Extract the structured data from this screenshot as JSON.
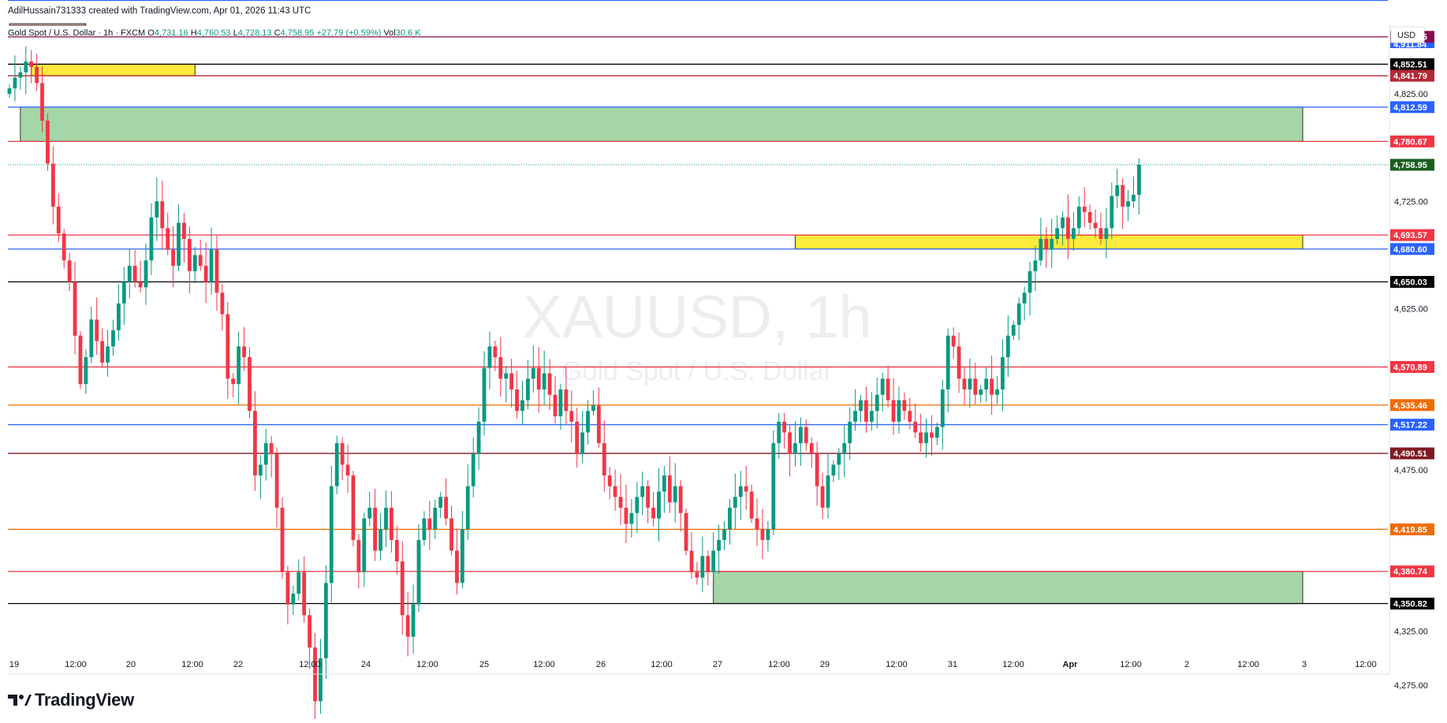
{
  "header": {
    "author": "AdilHussain731333",
    "created_text": "created with TradingView.com, Apr 01, 2026 11:43 UTC"
  },
  "symbol_line": {
    "name": "Gold Spot / U.S. Dollar · 1h · FXCM",
    "o_label": "O",
    "o_value": "4,731.16",
    "h_label": "H",
    "h_value": "4,760.53",
    "l_label": "L",
    "l_value": "4,728.13",
    "c_label": "C",
    "c_value": "4,758.95",
    "change": "+27.79 (+0.59%)",
    "vol_label": "Vol",
    "vol_value": "30.6 K"
  },
  "currency_badge": "USD",
  "watermark": {
    "symbol": "XAUUSD, 1h",
    "description": "Gold Spot / U.S. Dollar"
  },
  "logo": {
    "text": "TradingView"
  },
  "colors": {
    "up": "#089981",
    "down": "#f23645",
    "grid": "#f0f3fa",
    "zone_green": "#a5d6a7",
    "zone_yellow": "#ffeb3b"
  },
  "chart_data": {
    "type": "candlestick",
    "ylim": [
      4258,
      4938
    ],
    "y_ticks": [
      "4,825.00",
      "4,725.00",
      "4,625.00",
      "4,475.00",
      "4,325.00",
      "4,275.00"
    ],
    "y_tick_values": [
      4825,
      4725,
      4625,
      4475,
      4325,
      4275
    ],
    "x_ticks": [
      "19",
      "12:00",
      "20",
      "12:00",
      "22",
      "12:00",
      "24",
      "12:00",
      "25",
      "12:00",
      "26",
      "12:00",
      "27",
      "12:00",
      "29",
      "12:00",
      "31",
      "12:00",
      "Apr",
      "12:00",
      "2",
      "12:00",
      "3",
      "12:00"
    ],
    "price_levels": [
      {
        "value": 4911.84,
        "label": "4,911.84",
        "color": "#2962ff"
      },
      {
        "value": 4877.95,
        "label": "4,877.95",
        "color": "#880e4f"
      },
      {
        "value": 4852.51,
        "label": "4,852.51",
        "color": "#000000"
      },
      {
        "value": 4841.79,
        "label": "4,841.79",
        "color": "#b22833"
      },
      {
        "value": 4812.59,
        "label": "4,812.59",
        "color": "#2962ff"
      },
      {
        "value": 4780.67,
        "label": "4,780.67",
        "color": "#f23645"
      },
      {
        "value": 4758.95,
        "label": "4,758.95",
        "color": "#1b5e20"
      },
      {
        "value": 4693.57,
        "label": "4,693.57",
        "color": "#f23645"
      },
      {
        "value": 4680.6,
        "label": "4,680.60",
        "color": "#2962ff"
      },
      {
        "value": 4650.03,
        "label": "4,650.03",
        "color": "#000000"
      },
      {
        "value": 4570.89,
        "label": "4,570.89",
        "color": "#f23645"
      },
      {
        "value": 4535.46,
        "label": "4,535.46",
        "color": "#ef6c00"
      },
      {
        "value": 4517.22,
        "label": "4,517.22",
        "color": "#2962ff"
      },
      {
        "value": 4490.51,
        "label": "4,490.51",
        "color": "#801922"
      },
      {
        "value": 4419.85,
        "label": "4,419.85",
        "color": "#ef6c00"
      },
      {
        "value": 4380.74,
        "label": "4,380.74",
        "color": "#f23645"
      },
      {
        "value": 4350.82,
        "label": "4,350.82",
        "color": "#000000"
      }
    ],
    "zones": [
      {
        "x_start": 2,
        "x_end": 237,
        "y_low": 4780.67,
        "y_high": 4812.59,
        "color": "#a5d6a7"
      },
      {
        "x_start": 4,
        "x_end": 34,
        "y_low": 4841.79,
        "y_high": 4852.51,
        "color": "#ffeb3b"
      },
      {
        "x_start": 144,
        "x_end": 237,
        "y_low": 4680.6,
        "y_high": 4693.57,
        "color": "#ffeb3b"
      },
      {
        "x_start": 129,
        "x_end": 237,
        "y_low": 4350.82,
        "y_high": 4380.74,
        "color": "#a5d6a7"
      },
      {
        "x_start": 0,
        "x_end": 14,
        "y_low": 4930,
        "y_high": 4938,
        "color": "#ffccbc"
      }
    ],
    "candles_close": [
      4830,
      4840,
      4845,
      4855,
      4850,
      4835,
      4800,
      4760,
      4720,
      4695,
      4670,
      4650,
      4600,
      4555,
      4580,
      4615,
      4595,
      4575,
      4590,
      4605,
      4630,
      4650,
      4665,
      4650,
      4645,
      4670,
      4710,
      4725,
      4700,
      4680,
      4665,
      4705,
      4690,
      4660,
      4675,
      4665,
      4650,
      4680,
      4640,
      4620,
      4560,
      4555,
      4590,
      4580,
      4530,
      4470,
      4480,
      4500,
      4490,
      4440,
      4380,
      4350,
      4360,
      4380,
      4340,
      4310,
      4260,
      4300,
      4370,
      4460,
      4500,
      4480,
      4470,
      4410,
      4380,
      4430,
      4440,
      4400,
      4420,
      4440,
      4410,
      4390,
      4340,
      4320,
      4350,
      4410,
      4430,
      4420,
      4440,
      4450,
      4430,
      4400,
      4370,
      4420,
      4460,
      4490,
      4520,
      4570,
      4590,
      4580,
      4560,
      4565,
      4550,
      4530,
      4540,
      4560,
      4570,
      4550,
      4565,
      4545,
      4525,
      4550,
      4530,
      4520,
      4490,
      4510,
      4530,
      4535,
      4500,
      4470,
      4460,
      4450,
      4440,
      4425,
      4435,
      4450,
      4460,
      4440,
      4430,
      4455,
      4470,
      4445,
      4460,
      4435,
      4400,
      4380,
      4375,
      4395,
      4380,
      4400,
      4410,
      4420,
      4440,
      4450,
      4460,
      4455,
      4430,
      4420,
      4410,
      4420,
      4500,
      4520,
      4510,
      4490,
      4500,
      4515,
      4500,
      4490,
      4460,
      4440,
      4470,
      4480,
      4490,
      4500,
      4520,
      4530,
      4540,
      4520,
      4530,
      4545,
      4560,
      4540,
      4520,
      4540,
      4530,
      4520,
      4510,
      4500,
      4510,
      4505,
      4515,
      4550,
      4600,
      4590,
      4560,
      4550,
      4560,
      4545,
      4550,
      4560,
      4545,
      4550,
      4580,
      4600,
      4610,
      4630,
      4640,
      4660,
      4670,
      4690,
      4680,
      4690,
      4700,
      4710,
      4690,
      4700,
      4720,
      4715,
      4705,
      4700,
      4690,
      4700,
      4730,
      4740,
      4720,
      4725,
      4731,
      4759
    ]
  }
}
